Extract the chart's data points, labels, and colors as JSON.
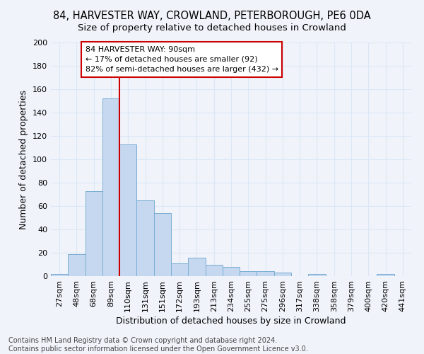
{
  "title": "84, HARVESTER WAY, CROWLAND, PETERBOROUGH, PE6 0DA",
  "subtitle": "Size of property relative to detached houses in Crowland",
  "xlabel": "Distribution of detached houses by size in Crowland",
  "ylabel": "Number of detached properties",
  "bin_labels": [
    "27sqm",
    "48sqm",
    "68sqm",
    "89sqm",
    "110sqm",
    "131sqm",
    "151sqm",
    "172sqm",
    "193sqm",
    "213sqm",
    "234sqm",
    "255sqm",
    "275sqm",
    "296sqm",
    "317sqm",
    "338sqm",
    "358sqm",
    "379sqm",
    "400sqm",
    "420sqm",
    "441sqm"
  ],
  "bar_values": [
    2,
    19,
    73,
    152,
    113,
    65,
    54,
    11,
    16,
    10,
    8,
    4,
    4,
    3,
    0,
    2,
    0,
    0,
    0,
    2,
    0
  ],
  "bar_color": "#c5d8f0",
  "bar_edge_color": "#7aadd4",
  "vline_color": "#cc0000",
  "vline_x_index": 3,
  "annotation_text": "84 HARVESTER WAY: 90sqm\n← 17% of detached houses are smaller (92)\n82% of semi-detached houses are larger (432) →",
  "annotation_box_color": "#ffffff",
  "annotation_box_edge_color": "#cc0000",
  "ylim": [
    0,
    200
  ],
  "yticks": [
    0,
    20,
    40,
    60,
    80,
    100,
    120,
    140,
    160,
    180,
    200
  ],
  "footer_text": "Contains HM Land Registry data © Crown copyright and database right 2024.\nContains public sector information licensed under the Open Government Licence v3.0.",
  "bg_color": "#f0f4fa",
  "grid_color": "#dce6f5",
  "title_fontsize": 10.5,
  "subtitle_fontsize": 9.5,
  "xlabel_fontsize": 9,
  "ylabel_fontsize": 9,
  "tick_fontsize": 8,
  "footer_fontsize": 7,
  "annotation_fontsize": 8
}
